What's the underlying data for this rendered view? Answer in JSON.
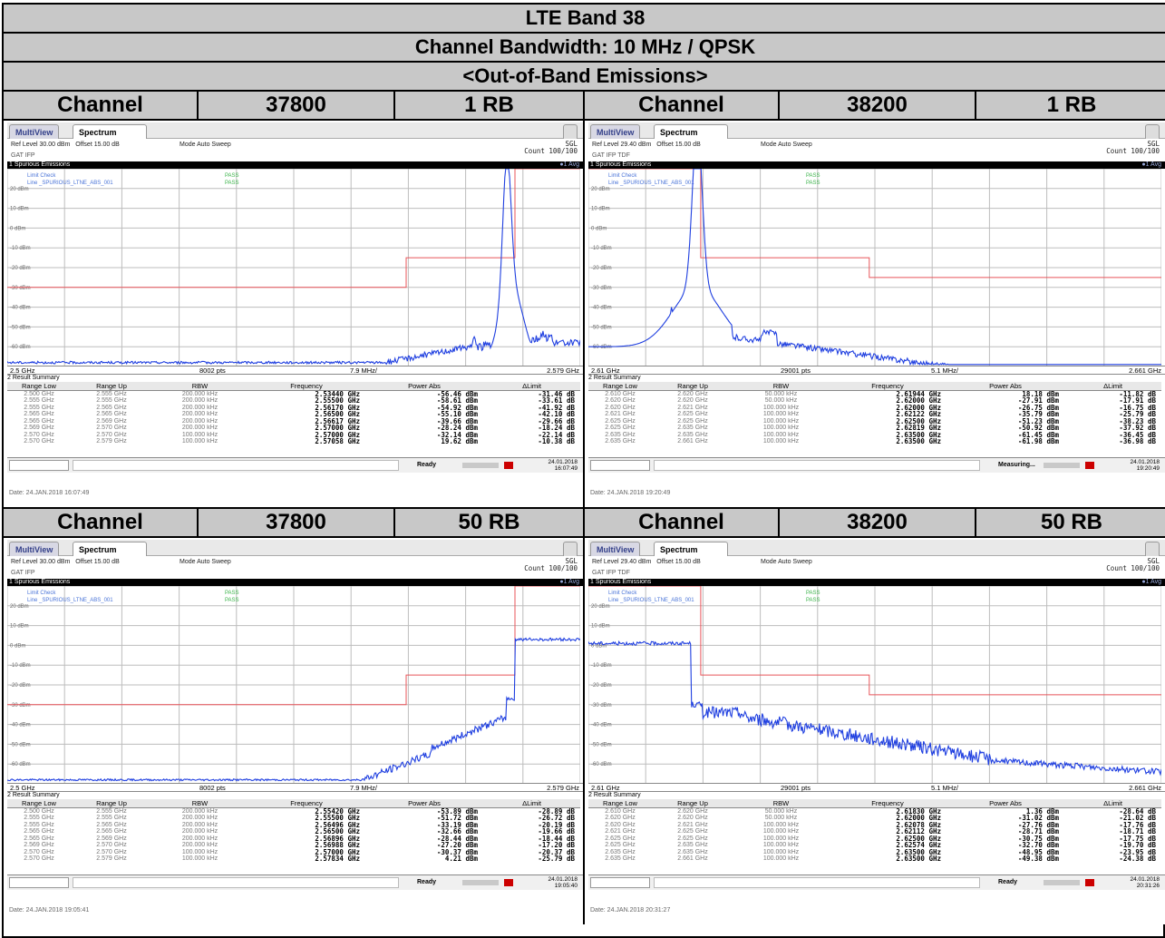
{
  "header": {
    "band": "LTE Band 38",
    "bandwidth": "Channel Bandwidth: 10 MHz / QPSK",
    "section": "<Out-of-Band Emissions>"
  },
  "rows": [
    {
      "left": {
        "label": "Channel",
        "channel": "37800",
        "rb": "1 RB"
      },
      "right": {
        "label": "Channel",
        "channel": "38200",
        "rb": "1 RB"
      }
    },
    {
      "left": {
        "label": "Channel",
        "channel": "37800",
        "rb": "50 RB"
      },
      "right": {
        "label": "Channel",
        "channel": "38200",
        "rb": "50 RB"
      }
    }
  ],
  "labels": {
    "tab_multiview": "MultiView",
    "tab_spectrum": "Spectrum",
    "offset": "Offset 15.00 dB",
    "mode": "Mode Auto Sweep",
    "sgl": "SGL",
    "count": "Count 100/100",
    "spurious": "1 Spurious Emissions",
    "avg": "●1 Avg",
    "limit_check": "Limit Check",
    "line_name": "Line _SPURIOUS_LTNE_ABS_001",
    "pass": "PASS",
    "summary": "2 Result Summary",
    "cols": [
      "Range Low",
      "Range Up",
      "RBW",
      "Frequency",
      "Power Abs",
      "ΔLimit"
    ]
  },
  "screens": [
    {
      "ref": "Ref Level 30.00 dBm",
      "att": "GAT IFP",
      "start": "2.5 GHz",
      "pts": "8002 pts",
      "step": "7.9 MHz/",
      "stop": "2.579 GHz",
      "status": "Ready",
      "datetime": [
        "24.01.2018",
        "16:07:49"
      ],
      "footer": "Date: 24.JAN.2018 16:07:49",
      "ylabels": [
        "20 dBm",
        "10 dBm",
        "0 dBm",
        "-10 dBm",
        "-20 dBm",
        "-30 dBm",
        "-40 dBm",
        "-50 dBm",
        "-60 dBm"
      ],
      "chart_data": {
        "type": "line",
        "spectrum": "1rb-high",
        "x_range": [
          2.5,
          2.579
        ],
        "y_range": [
          -70,
          30
        ],
        "limit_line": [
          [
            2.5,
            -30
          ],
          [
            2.555,
            -30
          ],
          [
            2.555,
            -15
          ],
          [
            2.57,
            -15
          ],
          [
            2.57,
            30
          ],
          [
            2.579,
            30
          ]
        ]
      },
      "summary_rows": [
        [
          "2.500 GHz",
          "2.555 GHz",
          "200.000 kHz",
          "2.53440 GHz",
          "-56.46 dBm",
          "-31.46 dB"
        ],
        [
          "2.555 GHz",
          "2.555 GHz",
          "200.000 kHz",
          "2.55500 GHz",
          "-58.61 dBm",
          "-33.61 dB"
        ],
        [
          "2.555 GHz",
          "2.565 GHz",
          "200.000 kHz",
          "2.56170 GHz",
          "-54.92 dBm",
          "-41.92 dB"
        ],
        [
          "2.565 GHz",
          "2.565 GHz",
          "200.000 kHz",
          "2.56500 GHz",
          "-55.10 dBm",
          "-42.10 dB"
        ],
        [
          "2.565 GHz",
          "2.569 GHz",
          "200.000 kHz",
          "2.56617 GHz",
          "-39.66 dBm",
          "-29.66 dB"
        ],
        [
          "2.569 GHz",
          "2.570 GHz",
          "200.000 kHz",
          "2.57000 GHz",
          "-28.24 dBm",
          "-18.24 dB"
        ],
        [
          "2.570 GHz",
          "2.570 GHz",
          "100.000 kHz",
          "2.57000 GHz",
          "-32.14 dBm",
          "-22.14 dB"
        ],
        [
          "2.570 GHz",
          "2.579 GHz",
          "100.000 kHz",
          "2.57058 GHz",
          "19.62 dBm",
          "-10.38 dB"
        ]
      ]
    },
    {
      "ref": "Ref Level 29.40 dBm",
      "att": "GAT IFP TDF",
      "start": "2.61 GHz",
      "pts": "29001 pts",
      "step": "5.1 MHz/",
      "stop": "2.661 GHz",
      "status": "Measuring...",
      "datetime": [
        "24.01.2018",
        "19:20:49"
      ],
      "footer": "Date: 24.JAN.2018 19:20:49",
      "ylabels": [
        "20 dBm",
        "10 dBm",
        "0 dBm",
        "-10 dBm",
        "-20 dBm",
        "-30 dBm",
        "-40 dBm",
        "-50 dBm",
        "-60 dBm"
      ],
      "chart_data": {
        "type": "line",
        "spectrum": "1rb-low",
        "x_range": [
          2.61,
          2.661
        ],
        "y_range": [
          -70,
          30
        ],
        "limit_line": [
          [
            2.61,
            30
          ],
          [
            2.62,
            30
          ],
          [
            2.62,
            -15
          ],
          [
            2.635,
            -15
          ],
          [
            2.635,
            -25
          ],
          [
            2.661,
            -25
          ]
        ]
      },
      "summary_rows": [
        [
          "2.610 GHz",
          "2.620 GHz",
          "50.000 kHz",
          "2.61944 GHz",
          "18.18 dBm",
          "-11.82 dB"
        ],
        [
          "2.620 GHz",
          "2.620 GHz",
          "50.000 kHz",
          "2.62000 GHz",
          "-27.91 dBm",
          "-17.91 dB"
        ],
        [
          "2.620 GHz",
          "2.621 GHz",
          "100.000 kHz",
          "2.62000 GHz",
          "-26.75 dBm",
          "-16.75 dB"
        ],
        [
          "2.621 GHz",
          "2.625 GHz",
          "100.000 kHz",
          "2.62122 GHz",
          "-35.79 dBm",
          "-25.79 dB"
        ],
        [
          "2.625 GHz",
          "2.625 GHz",
          "100.000 kHz",
          "2.62500 GHz",
          "-51.23 dBm",
          "-38.23 dB"
        ],
        [
          "2.625 GHz",
          "2.635 GHz",
          "100.000 kHz",
          "2.62819 GHz",
          "-50.92 dBm",
          "-37.92 dB"
        ],
        [
          "2.635 GHz",
          "2.635 GHz",
          "100.000 kHz",
          "2.63500 GHz",
          "-61.45 dBm",
          "-36.45 dB"
        ],
        [
          "2.635 GHz",
          "2.661 GHz",
          "100.000 kHz",
          "2.63500 GHz",
          "-61.98 dBm",
          "-36.98 dB"
        ]
      ]
    },
    {
      "ref": "Ref Level 30.00 dBm",
      "att": "GAT IFP",
      "start": "2.5 GHz",
      "pts": "8002 pts",
      "step": "7.9 MHz/",
      "stop": "2.579 GHz",
      "status": "Ready",
      "datetime": [
        "24.01.2018",
        "19:05:40"
      ],
      "footer": "Date: 24.JAN.2018 19:05:41",
      "ylabels": [
        "20 dBm",
        "10 dBm",
        "0 dBm",
        "-10 dBm",
        "-20 dBm",
        "-30 dBm",
        "-40 dBm",
        "-50 dBm",
        "-60 dBm"
      ],
      "chart_data": {
        "type": "line",
        "spectrum": "50rb-high",
        "x_range": [
          2.5,
          2.579
        ],
        "y_range": [
          -70,
          30
        ],
        "limit_line": [
          [
            2.5,
            -30
          ],
          [
            2.555,
            -30
          ],
          [
            2.555,
            -15
          ],
          [
            2.57,
            -15
          ],
          [
            2.57,
            30
          ],
          [
            2.579,
            30
          ]
        ]
      },
      "summary_rows": [
        [
          "2.500 GHz",
          "2.555 GHz",
          "200.000 kHz",
          "2.55420 GHz",
          "-53.89 dBm",
          "-28.89 dB"
        ],
        [
          "2.555 GHz",
          "2.555 GHz",
          "200.000 kHz",
          "2.55500 GHz",
          "-51.72 dBm",
          "-26.72 dB"
        ],
        [
          "2.555 GHz",
          "2.565 GHz",
          "200.000 kHz",
          "2.56496 GHz",
          "-33.19 dBm",
          "-20.19 dB"
        ],
        [
          "2.565 GHz",
          "2.565 GHz",
          "200.000 kHz",
          "2.56500 GHz",
          "-32.66 dBm",
          "-19.66 dB"
        ],
        [
          "2.565 GHz",
          "2.569 GHz",
          "200.000 kHz",
          "2.56896 GHz",
          "-28.44 dBm",
          "-18.44 dB"
        ],
        [
          "2.569 GHz",
          "2.570 GHz",
          "200.000 kHz",
          "2.56988 GHz",
          "-27.20 dBm",
          "-17.20 dB"
        ],
        [
          "2.570 GHz",
          "2.570 GHz",
          "100.000 kHz",
          "2.57000 GHz",
          "-30.37 dBm",
          "-20.37 dB"
        ],
        [
          "2.570 GHz",
          "2.579 GHz",
          "100.000 kHz",
          "2.57834 GHz",
          "4.21 dBm",
          "-25.79 dB"
        ]
      ]
    },
    {
      "ref": "Ref Level 29.40 dBm",
      "att": "GAT IFP TDF",
      "start": "2.61 GHz",
      "pts": "29001 pts",
      "step": "5.1 MHz/",
      "stop": "2.661 GHz",
      "status": "Ready",
      "datetime": [
        "24.01.2018",
        "20:31:26"
      ],
      "footer": "Date: 24.JAN.2018 20:31:27",
      "ylabels": [
        "20 dBm",
        "10 dBm",
        "0 dBm",
        "-10 dBm",
        "-20 dBm",
        "-30 dBm",
        "-40 dBm",
        "-50 dBm",
        "-60 dBm"
      ],
      "chart_data": {
        "type": "line",
        "spectrum": "50rb-low",
        "x_range": [
          2.61,
          2.661
        ],
        "y_range": [
          -70,
          30
        ],
        "limit_line": [
          [
            2.61,
            30
          ],
          [
            2.62,
            30
          ],
          [
            2.62,
            -15
          ],
          [
            2.635,
            -15
          ],
          [
            2.635,
            -25
          ],
          [
            2.661,
            -25
          ]
        ]
      },
      "summary_rows": [
        [
          "2.610 GHz",
          "2.620 GHz",
          "50.000 kHz",
          "2.61830 GHz",
          "1.36 dBm",
          "-28.64 dB"
        ],
        [
          "2.620 GHz",
          "2.620 GHz",
          "50.000 kHz",
          "2.62000 GHz",
          "-31.02 dBm",
          "-21.02 dB"
        ],
        [
          "2.620 GHz",
          "2.621 GHz",
          "100.000 kHz",
          "2.62078 GHz",
          "-27.76 dBm",
          "-17.76 dB"
        ],
        [
          "2.621 GHz",
          "2.625 GHz",
          "100.000 kHz",
          "2.62112 GHz",
          "-28.71 dBm",
          "-18.71 dB"
        ],
        [
          "2.625 GHz",
          "2.625 GHz",
          "100.000 kHz",
          "2.62500 GHz",
          "-30.75 dBm",
          "-17.75 dB"
        ],
        [
          "2.625 GHz",
          "2.635 GHz",
          "100.000 kHz",
          "2.62574 GHz",
          "-32.70 dBm",
          "-19.70 dB"
        ],
        [
          "2.635 GHz",
          "2.635 GHz",
          "100.000 kHz",
          "2.63500 GHz",
          "-48.95 dBm",
          "-23.95 dB"
        ],
        [
          "2.635 GHz",
          "2.661 GHz",
          "100.000 kHz",
          "2.63500 GHz",
          "-49.38 dBm",
          "-24.38 dB"
        ]
      ]
    }
  ]
}
